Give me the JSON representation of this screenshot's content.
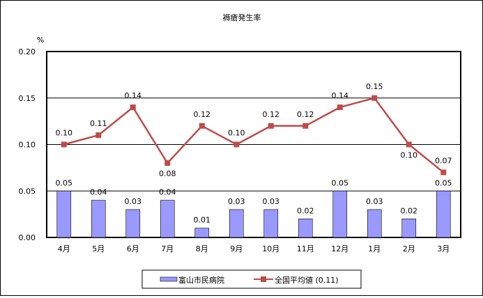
{
  "chart_data": {
    "type": "bar+line",
    "title": "褥瘡発生率",
    "ylabel": "%",
    "ylim": [
      0,
      0.2
    ],
    "yticks": [
      "0.00",
      "0.05",
      "0.10",
      "0.15",
      "0.20"
    ],
    "grid": true,
    "legend_placement": "bottom",
    "categories": [
      "4月",
      "5月",
      "6月",
      "7月",
      "8月",
      "9月",
      "10月",
      "11月",
      "12月",
      "1月",
      "2月",
      "3月"
    ],
    "series": [
      {
        "name": "富山市民病院",
        "type": "bar",
        "color": "#9999ff",
        "values": [
          0.05,
          0.04,
          0.03,
          0.04,
          0.01,
          0.03,
          0.03,
          0.02,
          0.05,
          0.03,
          0.02,
          0.05
        ]
      },
      {
        "name": "全国平均値 (0.11)",
        "type": "line",
        "color": "#be4b48",
        "values": [
          0.1,
          0.11,
          0.14,
          0.08,
          0.12,
          0.1,
          0.12,
          0.12,
          0.14,
          0.15,
          0.1,
          0.07
        ]
      }
    ]
  }
}
